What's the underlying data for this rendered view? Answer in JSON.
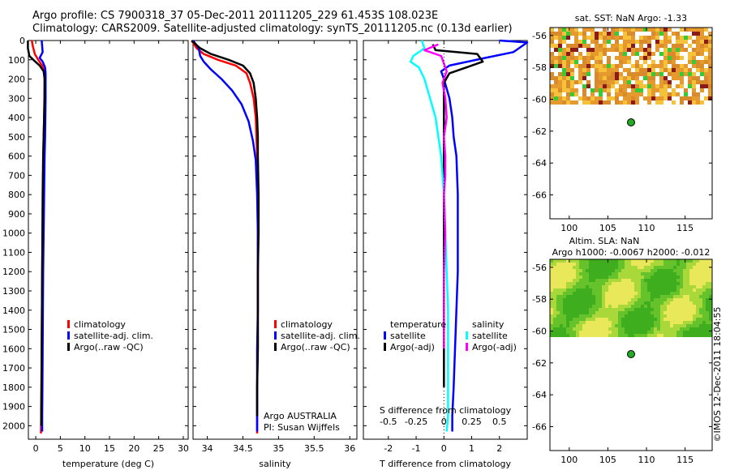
{
  "titles": {
    "line1": "Argo profile: CS 7900318_37 05-Dec-2011 20111205_229 61.453S 108.023E",
    "line2": "Climatology: CARS2009. Satellite-adjusted climatology: synTS_20111205.nc (0.13d earlier)"
  },
  "colors": {
    "climatology": "#ff0000",
    "satellite": "#0000ff",
    "argo": "#000000",
    "salinity_satellite": "#00ffff",
    "salinity_argo": "#ff00ff"
  },
  "chart_data": [
    {
      "type": "line",
      "xlabel": "temperature (deg C)",
      "xticks": [
        "0",
        "5",
        "10",
        "15",
        "20",
        "25",
        "30"
      ],
      "xlim": [
        -1.5,
        31
      ],
      "ylim": [
        0,
        2070
      ],
      "yticks": [
        "0",
        "100",
        "200",
        "300",
        "400",
        "500",
        "600",
        "700",
        "800",
        "900",
        "1000",
        "1100",
        "1200",
        "1300",
        "1400",
        "1500",
        "1600",
        "1700",
        "1800",
        "1900",
        "2000"
      ],
      "legend": [
        "climatology",
        "satellite-adj. clim.",
        "Argo(..raw -QC)"
      ],
      "series": [
        {
          "name": "climatology",
          "color": "#ff0000",
          "x": [
            -0.8,
            -0.6,
            -0.2,
            0.5,
            1.3,
            1.7,
            1.8,
            1.75,
            1.7,
            1.6,
            1.55,
            1.45,
            1.4,
            1.3,
            1.25,
            1.2,
            1.15,
            1.1,
            1.05
          ],
          "y": [
            0,
            30,
            70,
            100,
            130,
            160,
            200,
            300,
            400,
            500,
            600,
            800,
            1000,
            1200,
            1400,
            1600,
            1800,
            1950,
            2040
          ]
        },
        {
          "name": "satellite-adj. clim.",
          "color": "#0000ff",
          "x": [
            1.2,
            1.4,
            0.8,
            1.4,
            1.9,
            2.0,
            2.0,
            2.0,
            1.95,
            1.9,
            1.8,
            1.7,
            1.6,
            1.5,
            1.45,
            1.4,
            1.35,
            1.3,
            1.3
          ],
          "y": [
            0,
            60,
            90,
            110,
            140,
            170,
            200,
            300,
            400,
            500,
            600,
            800,
            1000,
            1200,
            1400,
            1600,
            1800,
            1950,
            2030
          ]
        },
        {
          "name": "Argo(..raw -QC)",
          "color": "#000000",
          "x": [
            -1.6,
            -1.6,
            -1.3,
            -0.5,
            0.8,
            1.6,
            1.8,
            1.8,
            1.7,
            1.6,
            1.5,
            1.4,
            1.35,
            1.3,
            1.25,
            1.2,
            1.15,
            1.1,
            1.1
          ],
          "y": [
            0,
            40,
            80,
            100,
            130,
            160,
            200,
            300,
            400,
            500,
            600,
            800,
            1000,
            1200,
            1400,
            1600,
            1800,
            1950,
            2000
          ]
        }
      ]
    },
    {
      "type": "line",
      "xlabel": "salinity",
      "xticks": [
        "34",
        "34.5",
        "35",
        "35.5",
        "36"
      ],
      "xlim": [
        33.8,
        36.1
      ],
      "ylim": [
        0,
        2070
      ],
      "legend": [
        "climatology",
        "satellite-adj. clim.",
        "Argo(..raw -QC)"
      ],
      "annotation": [
        "Argo AUSTRALIA",
        "PI: Susan Wijffels"
      ],
      "series": [
        {
          "name": "climatology",
          "color": "#ff0000",
          "x": [
            33.78,
            33.85,
            33.95,
            34.15,
            34.4,
            34.55,
            34.6,
            34.65,
            34.68,
            34.69,
            34.7,
            34.71,
            34.71,
            34.71,
            34.71,
            34.71,
            34.7,
            34.7,
            34.7
          ],
          "y": [
            0,
            40,
            70,
            100,
            130,
            170,
            220,
            300,
            400,
            500,
            600,
            800,
            1000,
            1200,
            1400,
            1600,
            1800,
            1950,
            2040
          ]
        },
        {
          "name": "satellite-adj. clim.",
          "color": "#0000ff",
          "x": [
            33.8,
            33.88,
            33.9,
            33.95,
            34.05,
            34.2,
            34.35,
            34.48,
            34.58,
            34.64,
            34.68,
            34.7,
            34.71,
            34.71,
            34.71,
            34.7,
            34.7,
            34.7,
            34.7
          ],
          "y": [
            0,
            40,
            80,
            110,
            150,
            200,
            260,
            330,
            420,
            520,
            620,
            800,
            1000,
            1200,
            1400,
            1600,
            1800,
            1950,
            2030
          ]
        },
        {
          "name": "Argo(..raw -QC)",
          "color": "#000000",
          "x": [
            33.78,
            33.9,
            34.05,
            34.3,
            34.5,
            34.6,
            34.65,
            34.68,
            34.7,
            34.71,
            34.71,
            34.72,
            34.72,
            34.71,
            34.71,
            34.71,
            34.7,
            34.7
          ],
          "y": [
            0,
            40,
            70,
            100,
            130,
            170,
            220,
            300,
            400,
            500,
            600,
            800,
            1000,
            1200,
            1400,
            1600,
            1800,
            1950
          ]
        }
      ]
    },
    {
      "type": "line",
      "xlabel": "T difference from climatology",
      "xlabel_top": "S difference from climatology",
      "xticks": [
        "-2",
        "-1",
        "0",
        "1",
        "2"
      ],
      "xticks_top": [
        "-0.5",
        "-0.25",
        "0",
        "0.25",
        "0.5"
      ],
      "xlim": [
        -2.9,
        3.0
      ],
      "ylim": [
        0,
        2070
      ],
      "legend_left": {
        "title": "temperature",
        "items": [
          "satellite",
          "Argo(-adj)"
        ]
      },
      "legend_right": {
        "title": "salinity",
        "items": [
          "satellite",
          "Argo(-adj)"
        ]
      },
      "series": [
        {
          "name": "temperature satellite",
          "color": "#0000ff",
          "x": [
            2.0,
            3.0,
            2.5,
            1.5,
            0.2,
            -0.1,
            0.0,
            0.2,
            0.3,
            0.35,
            0.45,
            0.5,
            0.5,
            0.5,
            0.45,
            0.4,
            0.35,
            0.3,
            0.3
          ],
          "y": [
            0,
            10,
            60,
            90,
            130,
            160,
            200,
            300,
            400,
            500,
            600,
            800,
            1000,
            1200,
            1400,
            1600,
            1800,
            1950,
            2030
          ]
        },
        {
          "name": "temperature Argo(-adj)",
          "color": "#000000",
          "x": [
            -0.4,
            -0.3,
            1.2,
            1.4,
            0.8,
            0.2,
            0.0,
            0.0,
            0.0,
            0.0,
            0.0,
            0.0,
            0.0,
            0.0,
            0.0,
            0.0,
            0.0
          ],
          "y": [
            20,
            50,
            70,
            110,
            140,
            170,
            220,
            300,
            400,
            500,
            600,
            800,
            1000,
            1200,
            1400,
            1600,
            1800
          ]
        },
        {
          "name": "salinity satellite",
          "color": "#00ffff",
          "x": [
            -0.8,
            -0.7,
            -1.1,
            -1.2,
            -0.9,
            -0.7,
            -0.5,
            -0.3,
            -0.2,
            -0.1,
            -0.05,
            0.0,
            0.05,
            0.1,
            0.15,
            0.15,
            0.15,
            0.15,
            0.1
          ],
          "y": [
            0,
            40,
            80,
            110,
            140,
            200,
            300,
            400,
            500,
            600,
            700,
            800,
            1000,
            1200,
            1400,
            1600,
            1800,
            1950,
            2030
          ]
        },
        {
          "name": "salinity Argo(-adj)",
          "color": "#ff00ff",
          "x": [
            -0.2,
            -0.7,
            -0.1,
            0.0,
            0.1,
            -0.05,
            0.05,
            0.1,
            0.0,
            0.05,
            0.05,
            0.0,
            0.05,
            0.0,
            0.0,
            0.0
          ],
          "y": [
            20,
            50,
            80,
            120,
            160,
            220,
            300,
            400,
            500,
            600,
            700,
            800,
            1000,
            1200,
            1400,
            1600
          ]
        }
      ]
    },
    {
      "type": "heatmap",
      "title": "sat. SST: NaN Argo: -1.33",
      "xticks": [
        "100",
        "105",
        "110",
        "115"
      ],
      "yticks": [
        "-56",
        "-58",
        "-60",
        "-62",
        "-64",
        "-66"
      ],
      "xlim": [
        97.5,
        118.5
      ],
      "ylim": [
        -67.5,
        -55.5
      ],
      "marker": {
        "lon": 108.0,
        "lat": -61.45
      }
    },
    {
      "type": "heatmap",
      "title_lines": [
        "Altim. SLA: NaN",
        "Argo h1000: -0.0067 h2000: -0.012"
      ],
      "xticks": [
        "100",
        "105",
        "110",
        "115"
      ],
      "yticks": [
        "-56",
        "-58",
        "-60",
        "-62",
        "-64",
        "-66"
      ],
      "xlim": [
        97.5,
        118.5
      ],
      "ylim": [
        -67.5,
        -55.5
      ],
      "marker": {
        "lon": 108.0,
        "lat": -61.45
      }
    }
  ],
  "watermark": "©IMOS 12-Dec-2011 18:04:55"
}
